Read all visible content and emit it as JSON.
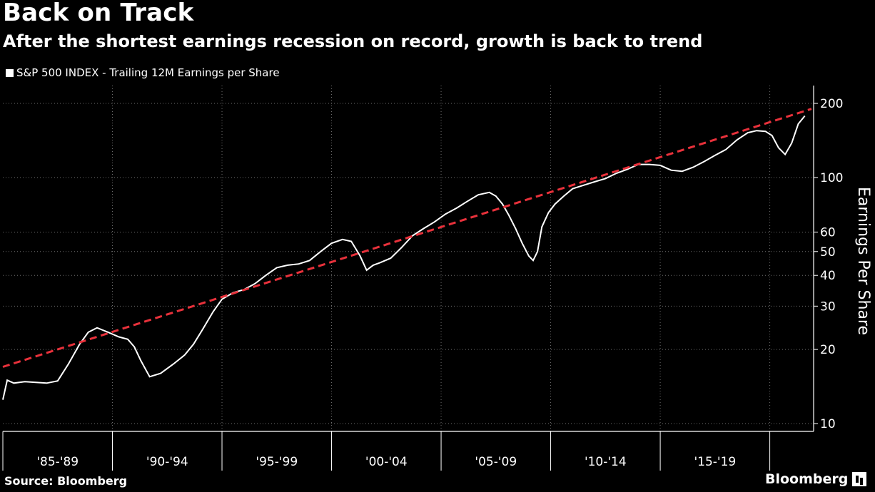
{
  "header": {
    "title": "Back on Track",
    "subtitle": "After the shortest earnings recession on record, growth is back to trend"
  },
  "footer": {
    "source": "Source: Bloomberg",
    "brand": "Bloomberg"
  },
  "colors": {
    "background": "#000000",
    "series": "#ffffff",
    "trend": "#e8313b",
    "grid": "#6e6e6e"
  },
  "chart_data": {
    "type": "line",
    "title": "Back on Track",
    "subtitle": "After the shortest earnings recession on record, growth is back to trend",
    "ylabel": "Earnings Per Share",
    "yscale": "log",
    "ylim": [
      10,
      200
    ],
    "xlim": [
      1985.0,
      2022.0
    ],
    "grid": true,
    "legend": "top-left",
    "y_ticks": [
      10,
      20,
      30,
      40,
      50,
      60,
      100,
      200
    ],
    "x_ticks": [
      "'85-'89",
      "'90-'94",
      "'95-'99",
      "'00-'04",
      "'05-'09",
      "'10-'14",
      "'15-'19"
    ],
    "series": [
      {
        "name": "S&P 500 INDEX - Trailing 12M Earnings per Share",
        "style": "solid",
        "x": [
          1985.0,
          1985.2,
          1985.5,
          1986.0,
          1986.5,
          1987.0,
          1987.5,
          1988.0,
          1988.5,
          1988.9,
          1989.3,
          1989.8,
          1990.3,
          1990.7,
          1991.0,
          1991.3,
          1991.7,
          1992.2,
          1992.8,
          1993.3,
          1993.7,
          1994.1,
          1994.6,
          1995.0,
          1995.5,
          1996.0,
          1996.5,
          1997.0,
          1997.5,
          1998.0,
          1998.5,
          1999.0,
          1999.5,
          2000.0,
          2000.5,
          2000.9,
          2001.3,
          2001.6,
          2001.9,
          2002.2,
          2002.7,
          2003.2,
          2003.7,
          2004.2,
          2004.7,
          2005.2,
          2005.7,
          2006.2,
          2006.7,
          2007.2,
          2007.5,
          2007.8,
          2008.1,
          2008.4,
          2008.7,
          2009.0,
          2009.2,
          2009.4,
          2009.6,
          2009.9,
          2010.2,
          2010.6,
          2011.0,
          2011.5,
          2012.0,
          2012.5,
          2013.0,
          2013.5,
          2014.0,
          2014.5,
          2015.0,
          2015.5,
          2016.0,
          2016.5,
          2017.0,
          2017.5,
          2018.0,
          2018.5,
          2019.0,
          2019.4,
          2019.8,
          2020.1,
          2020.4,
          2020.7,
          2021.0,
          2021.3,
          2021.6
        ],
        "values": [
          12.5,
          15.0,
          14.6,
          14.8,
          14.7,
          14.6,
          14.9,
          17.5,
          21.0,
          23.5,
          24.5,
          23.5,
          22.5,
          22.0,
          20.5,
          18.0,
          15.5,
          16.0,
          17.5,
          19.0,
          21.0,
          24.0,
          28.5,
          32.0,
          34.0,
          35.0,
          37.0,
          40.0,
          43.0,
          44.0,
          44.5,
          46.0,
          50.0,
          54.0,
          56.0,
          55.0,
          48.0,
          42.0,
          44.0,
          45.0,
          47.0,
          52.0,
          58.0,
          62.0,
          66.0,
          71.0,
          75.0,
          80.0,
          85.0,
          87.0,
          84.0,
          78.0,
          70.0,
          62.0,
          54.0,
          48.0,
          46.0,
          50.0,
          63.0,
          72.0,
          78.0,
          84.0,
          90.0,
          93.0,
          96.0,
          99.0,
          104.0,
          108.0,
          113.0,
          113.0,
          112.0,
          107.0,
          106.0,
          110.0,
          116.0,
          123.0,
          130.0,
          142.0,
          152.0,
          155.0,
          154.0,
          148.0,
          132.0,
          124.0,
          138.0,
          165.0,
          178.0
        ]
      },
      {
        "name": "trend",
        "style": "dashed",
        "x": [
          1985.0,
          2021.9
        ],
        "values": [
          17.0,
          190.0
        ]
      }
    ]
  }
}
